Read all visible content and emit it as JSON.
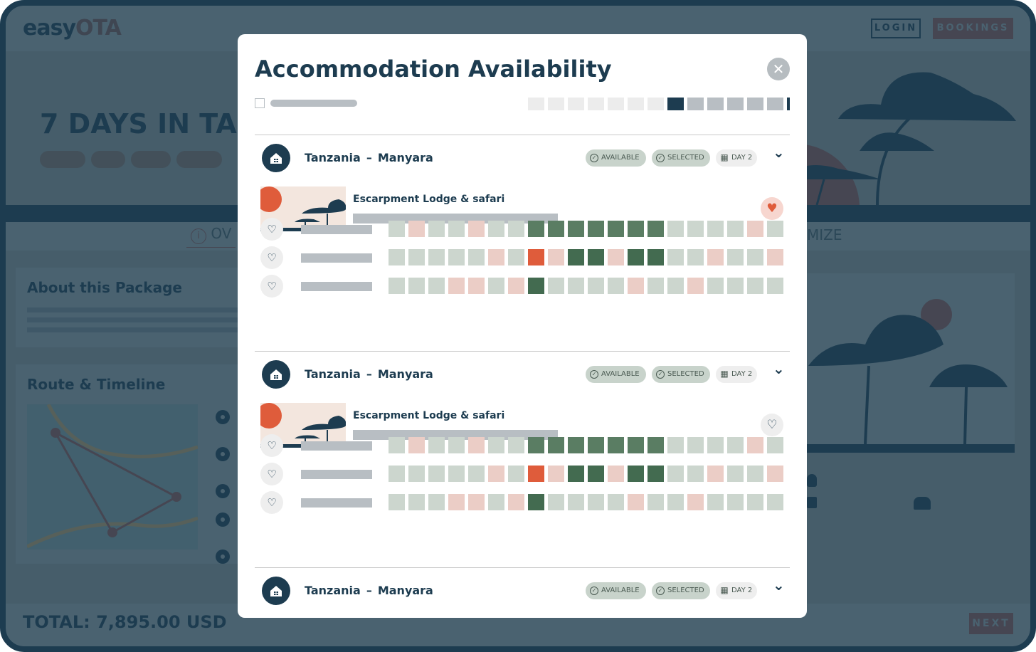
{
  "background": {
    "logo": {
      "part1": "easy",
      "part2": "OTA"
    },
    "nav": {
      "login": "LOGIN",
      "bookings": "BOOKINGS"
    },
    "hero_title": "7 DAYS IN TA",
    "tabs": {
      "overview": "OV",
      "customize": "MIZE"
    },
    "about_title": "About this Package",
    "route_title": "Route & Timeline",
    "total": "TOTAL: 7,895.00 USD",
    "next": "NEXT"
  },
  "modal": {
    "title": "Accommodation Availability",
    "close_icon": "close-icon",
    "date_strip": [
      "past",
      "past",
      "past",
      "past",
      "past",
      "past",
      "past",
      "current",
      "future",
      "future",
      "future",
      "future",
      "future"
    ],
    "date_colors": {
      "past": "#ececec",
      "current": "#1d3c50",
      "future": "#b8bec3"
    },
    "cell_colors": {
      "available": "#ccd6ce",
      "unavailable": "#ebcdc6",
      "selected": "#5a7d63",
      "booked": "#436b50",
      "current": "#df5c3b"
    },
    "sections": [
      {
        "country": "Tanzania",
        "separator": "–",
        "region": "Manyara",
        "badges": {
          "available": "AVAILABLE",
          "selected": "SELECTED",
          "day": "DAY 2"
        },
        "lodge_name": "Escarpment Lodge & safari",
        "favorite": true,
        "rows": [
          [
            "available",
            "unavailable",
            "available",
            "available",
            "unavailable",
            "available",
            "available",
            "selected",
            "selected",
            "selected",
            "selected",
            "selected",
            "selected",
            "selected",
            "available",
            "available",
            "available",
            "available",
            "unavailable",
            "available"
          ],
          [
            "available",
            "available",
            "available",
            "available",
            "available",
            "unavailable",
            "available",
            "current",
            "unavailable",
            "booked",
            "booked",
            "unavailable",
            "booked",
            "booked",
            "available",
            "available",
            "unavailable",
            "available",
            "available",
            "unavailable"
          ],
          [
            "available",
            "available",
            "available",
            "unavailable",
            "unavailable",
            "available",
            "unavailable",
            "booked",
            "available",
            "available",
            "available",
            "available",
            "unavailable",
            "available",
            "available",
            "unavailable",
            "available",
            "available",
            "available",
            "available"
          ]
        ]
      },
      {
        "country": "Tanzania",
        "separator": "–",
        "region": "Manyara",
        "badges": {
          "available": "AVAILABLE",
          "selected": "SELECTED",
          "day": "DAY 2"
        },
        "lodge_name": "Escarpment Lodge & safari",
        "favorite": false,
        "rows": [
          [
            "available",
            "unavailable",
            "available",
            "available",
            "unavailable",
            "available",
            "available",
            "selected",
            "selected",
            "selected",
            "selected",
            "selected",
            "selected",
            "selected",
            "available",
            "available",
            "available",
            "available",
            "unavailable",
            "available"
          ],
          [
            "available",
            "available",
            "available",
            "available",
            "available",
            "unavailable",
            "available",
            "current",
            "unavailable",
            "booked",
            "booked",
            "unavailable",
            "booked",
            "booked",
            "available",
            "available",
            "unavailable",
            "available",
            "available",
            "unavailable"
          ],
          [
            "available",
            "available",
            "available",
            "unavailable",
            "unavailable",
            "available",
            "unavailable",
            "booked",
            "available",
            "available",
            "available",
            "available",
            "unavailable",
            "available",
            "available",
            "unavailable",
            "available",
            "available",
            "available",
            "available"
          ]
        ]
      },
      {
        "country": "Tanzania",
        "separator": "–",
        "region": "Manyara",
        "badges": {
          "available": "AVAILABLE",
          "selected": "SELECTED",
          "day": "DAY 2"
        }
      }
    ]
  }
}
